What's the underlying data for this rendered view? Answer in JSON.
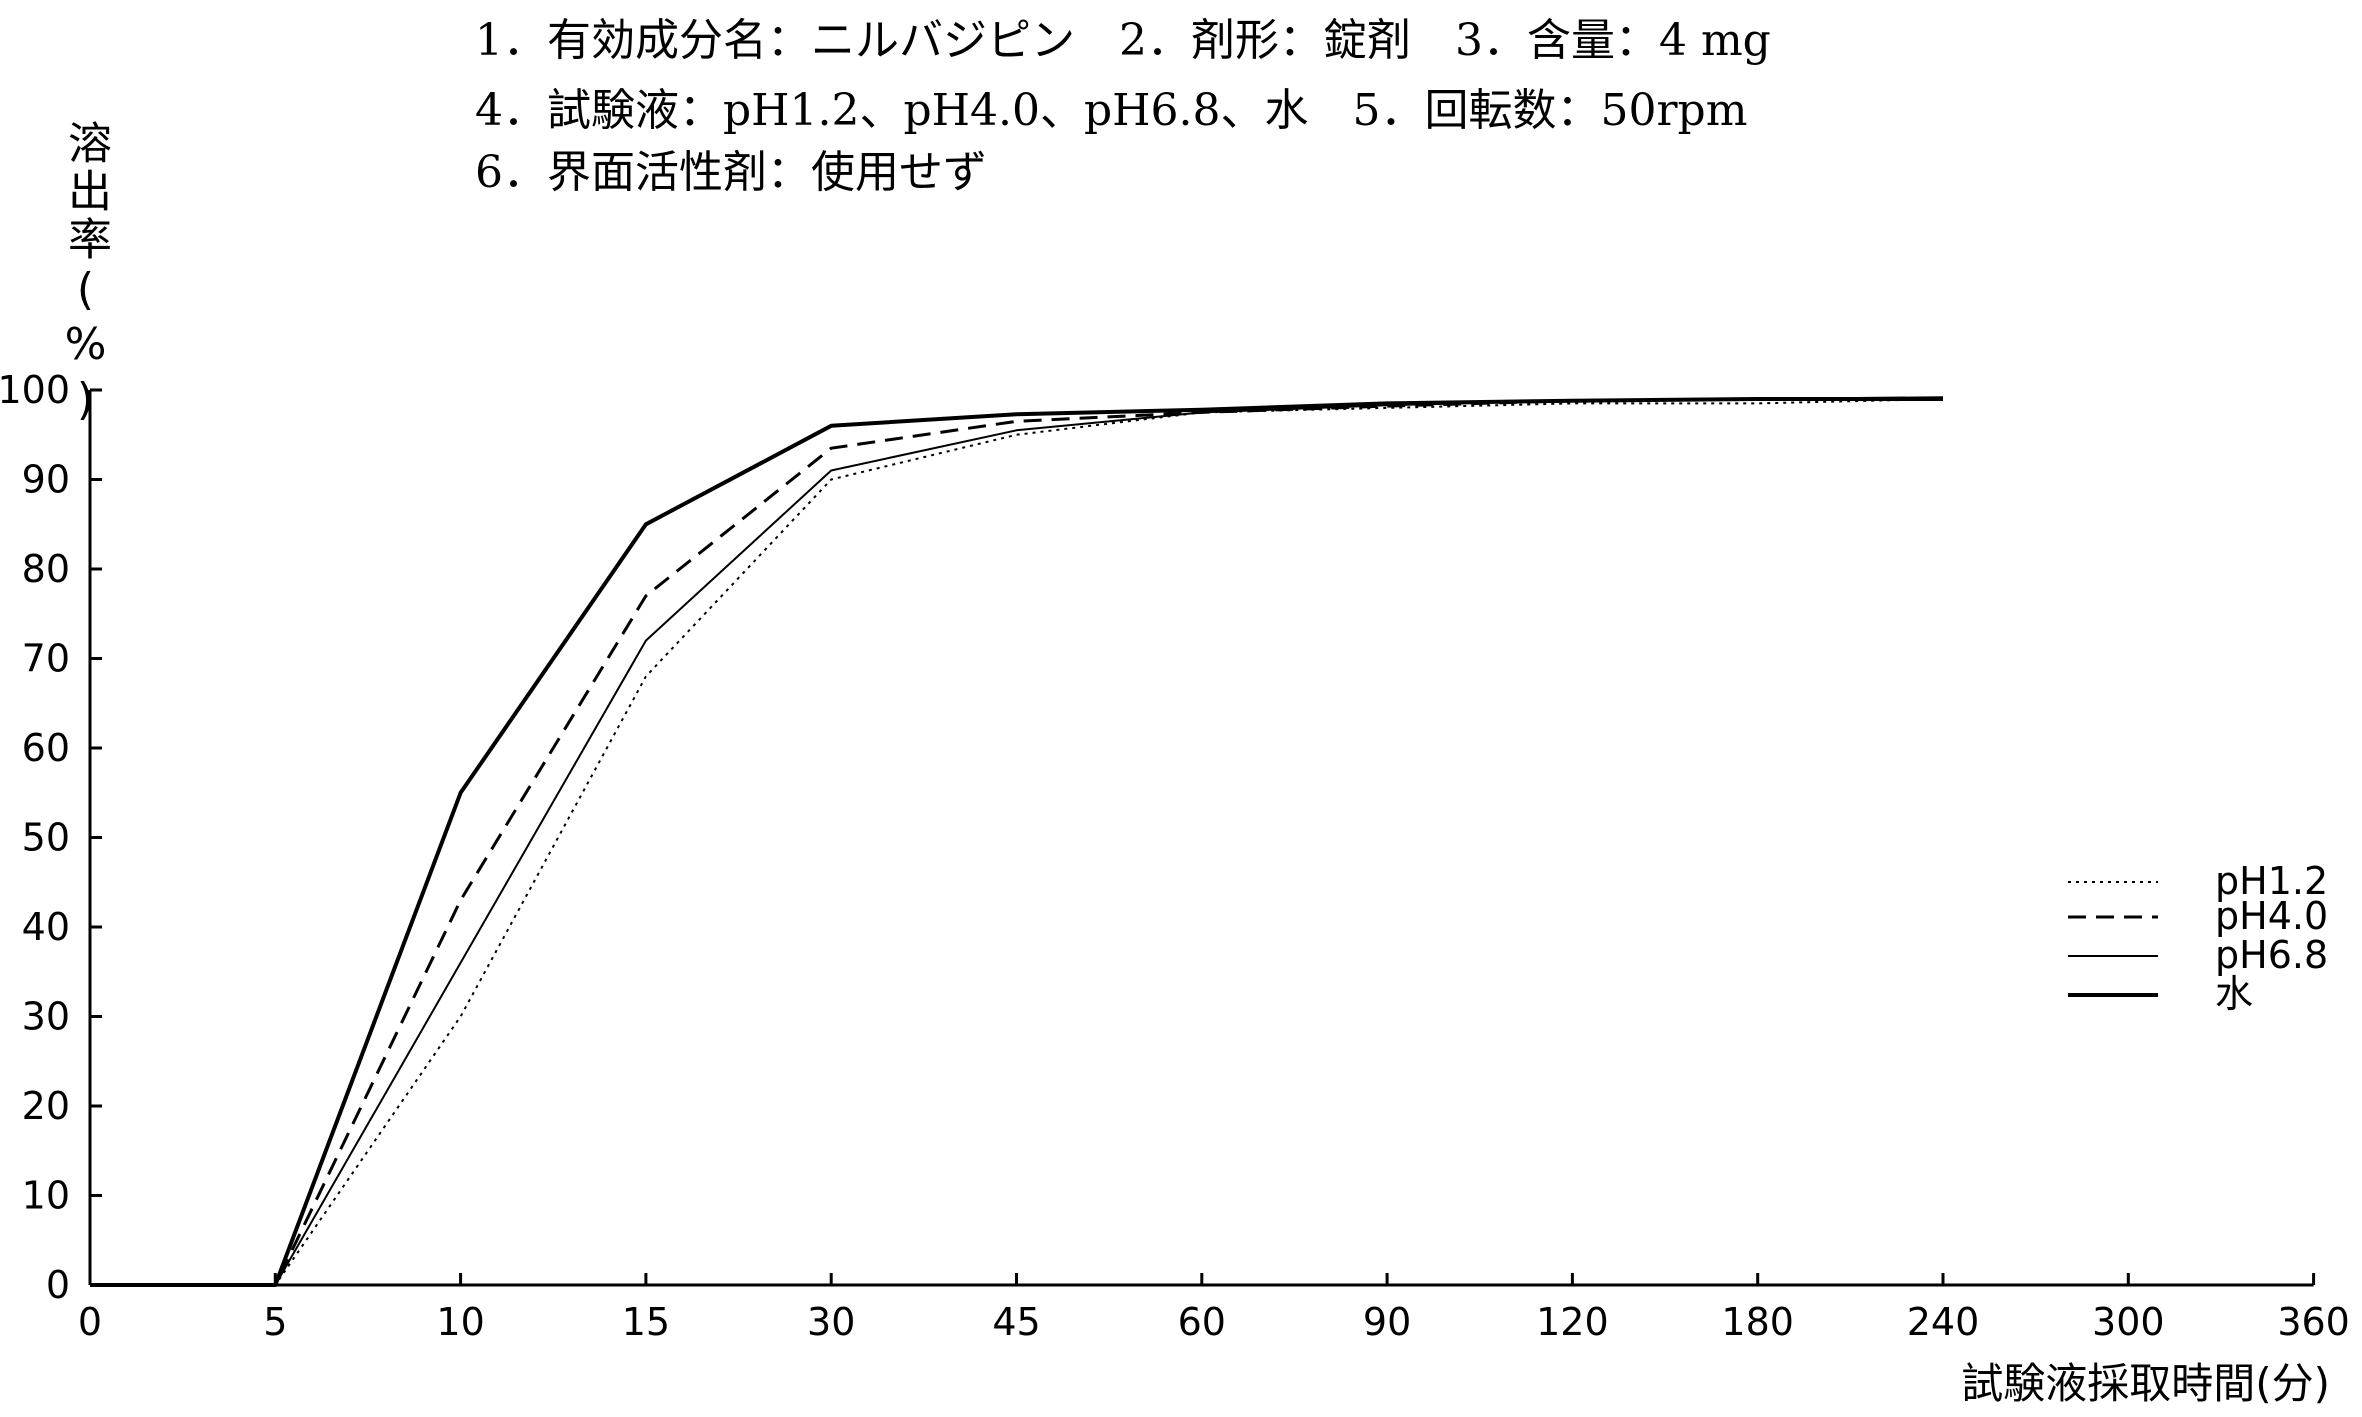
{
  "header": {
    "lines": [
      "1．有効成分名：ニルバジピン　2．剤形：錠剤　3．含量：4 mg",
      "4．試験液：pH1.2、pH4.0、pH6.8、水　5．回転数：50rpm",
      "6．界面活性剤：使用せず"
    ]
  },
  "chart_data": {
    "type": "line",
    "title": "",
    "xlabel": "試験液採取時間(分)",
    "ylabel": "溶出率(%)",
    "categories": [
      "0",
      "5",
      "10",
      "15",
      "30",
      "45",
      "60",
      "90",
      "120",
      "180",
      "240",
      "300",
      "360"
    ],
    "x": [
      0,
      5,
      10,
      15,
      30,
      45,
      60,
      90,
      120,
      180,
      240
    ],
    "ylim": [
      0,
      100
    ],
    "yticks": [
      0,
      10,
      20,
      30,
      40,
      50,
      60,
      70,
      80,
      90,
      100
    ],
    "legend_position": "right",
    "grid": false,
    "series": [
      {
        "name": "pH1.2",
        "style": "dotted",
        "color": "#000000",
        "values": [
          0,
          0,
          30,
          68,
          90,
          95,
          97.5,
          98,
          98.5,
          98.5,
          99
        ]
      },
      {
        "name": "pH4.0",
        "style": "dashed",
        "color": "#000000",
        "values": [
          0,
          0,
          43,
          77,
          93.5,
          96.5,
          97.5,
          98.2,
          98.8,
          99,
          99
        ]
      },
      {
        "name": "pH6.8",
        "style": "thin",
        "color": "#000000",
        "values": [
          0,
          0,
          36,
          72,
          91,
          95.5,
          97.5,
          98.3,
          98.8,
          99,
          99.2
        ]
      },
      {
        "name": "水",
        "style": "thick",
        "color": "#000000",
        "values": [
          0,
          0,
          55,
          85,
          96,
          97.3,
          97.8,
          98.5,
          98.8,
          99,
          99
        ]
      }
    ]
  }
}
